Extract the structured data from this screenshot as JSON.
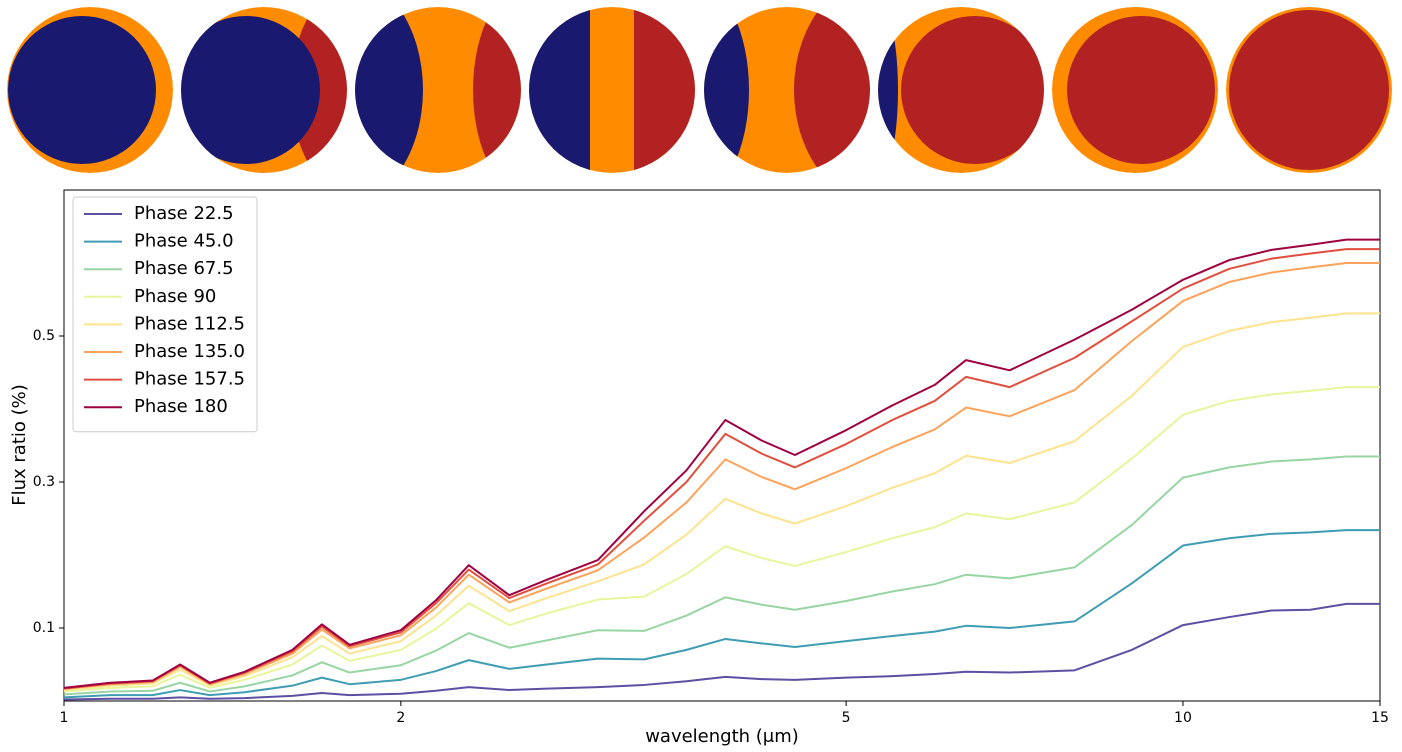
{
  "chart_data": {
    "type": "line",
    "xlabel": "wavelength (μm)",
    "ylabel": "Flux ratio (%)",
    "xscale": "log",
    "xlim": [
      1,
      15
    ],
    "xticks": [
      1,
      2,
      5,
      10,
      15
    ],
    "ylim": [
      0,
      0.7
    ],
    "yticks": [
      0.1,
      0.3,
      0.5
    ],
    "grid": false,
    "legend": "upper left",
    "x": [
      1,
      1.1,
      1.2,
      1.27,
      1.35,
      1.45,
      1.6,
      1.7,
      1.8,
      2.0,
      2.15,
      2.3,
      2.5,
      2.7,
      3.0,
      3.3,
      3.6,
      3.9,
      4.2,
      4.5,
      5,
      5.5,
      6,
      6.4,
      7,
      8,
      9,
      10,
      11,
      12,
      13,
      14,
      15
    ],
    "series": [
      {
        "name": "Phase 22.5",
        "color": "#5e4fa2",
        "values": [
          0.002,
          0.003,
          0.003,
          0.005,
          0.003,
          0.004,
          0.007,
          0.011,
          0.008,
          0.01,
          0.014,
          0.019,
          0.015,
          0.017,
          0.019,
          0.022,
          0.027,
          0.033,
          0.03,
          0.029,
          0.032,
          0.034,
          0.037,
          0.04,
          0.039,
          0.042,
          0.07,
          0.104,
          0.115,
          0.124,
          0.125,
          0.133,
          0.133
        ]
      },
      {
        "name": "Phase 45.0",
        "color": "#3f9db3",
        "values": [
          0.005,
          0.008,
          0.008,
          0.015,
          0.008,
          0.012,
          0.021,
          0.032,
          0.023,
          0.029,
          0.041,
          0.056,
          0.044,
          0.05,
          0.058,
          0.057,
          0.07,
          0.085,
          0.079,
          0.074,
          0.082,
          0.089,
          0.095,
          0.103,
          0.1,
          0.109,
          0.161,
          0.213,
          0.223,
          0.229,
          0.231,
          0.234,
          0.234
        ]
      },
      {
        "name": "Phase 67.5",
        "color": "#98d5a3",
        "values": [
          0.009,
          0.013,
          0.014,
          0.025,
          0.013,
          0.02,
          0.035,
          0.053,
          0.039,
          0.049,
          0.069,
          0.093,
          0.073,
          0.083,
          0.097,
          0.096,
          0.117,
          0.142,
          0.132,
          0.125,
          0.137,
          0.15,
          0.16,
          0.173,
          0.168,
          0.183,
          0.241,
          0.306,
          0.32,
          0.328,
          0.331,
          0.335,
          0.335
        ]
      },
      {
        "name": "Phase 90",
        "color": "#e8f59c",
        "values": [
          0.013,
          0.018,
          0.02,
          0.036,
          0.018,
          0.029,
          0.05,
          0.076,
          0.055,
          0.07,
          0.099,
          0.134,
          0.104,
          0.12,
          0.139,
          0.143,
          0.174,
          0.212,
          0.196,
          0.185,
          0.204,
          0.223,
          0.238,
          0.257,
          0.249,
          0.272,
          0.332,
          0.392,
          0.411,
          0.42,
          0.425,
          0.43,
          0.43
        ]
      },
      {
        "name": "Phase 112.5",
        "color": "#fde38e",
        "values": [
          0.015,
          0.021,
          0.024,
          0.043,
          0.021,
          0.034,
          0.06,
          0.089,
          0.065,
          0.082,
          0.117,
          0.158,
          0.123,
          0.141,
          0.164,
          0.187,
          0.228,
          0.277,
          0.257,
          0.243,
          0.267,
          0.292,
          0.312,
          0.336,
          0.326,
          0.356,
          0.418,
          0.485,
          0.507,
          0.519,
          0.525,
          0.531,
          0.531
        ]
      },
      {
        "name": "Phase 135.0",
        "color": "#fba35a",
        "values": [
          0.017,
          0.023,
          0.026,
          0.047,
          0.023,
          0.037,
          0.065,
          0.098,
          0.072,
          0.09,
          0.128,
          0.173,
          0.135,
          0.154,
          0.179,
          0.224,
          0.272,
          0.331,
          0.307,
          0.29,
          0.319,
          0.348,
          0.372,
          0.402,
          0.39,
          0.426,
          0.493,
          0.548,
          0.574,
          0.587,
          0.594,
          0.6,
          0.6
        ]
      },
      {
        "name": "Phase 157.5",
        "color": "#e04f3e",
        "values": [
          0.017,
          0.024,
          0.027,
          0.049,
          0.024,
          0.039,
          0.068,
          0.102,
          0.075,
          0.094,
          0.134,
          0.18,
          0.141,
          0.161,
          0.187,
          0.247,
          0.3,
          0.366,
          0.339,
          0.32,
          0.352,
          0.385,
          0.411,
          0.444,
          0.43,
          0.47,
          0.52,
          0.565,
          0.592,
          0.606,
          0.613,
          0.619,
          0.619
        ]
      },
      {
        "name": "Phase 180",
        "color": "#9e0142",
        "values": [
          0.018,
          0.025,
          0.028,
          0.05,
          0.025,
          0.04,
          0.07,
          0.105,
          0.077,
          0.097,
          0.138,
          0.186,
          0.145,
          0.166,
          0.193,
          0.26,
          0.316,
          0.385,
          0.357,
          0.337,
          0.371,
          0.405,
          0.433,
          0.467,
          0.453,
          0.495,
          0.536,
          0.577,
          0.604,
          0.618,
          0.625,
          0.632,
          0.632
        ]
      }
    ]
  }
}
